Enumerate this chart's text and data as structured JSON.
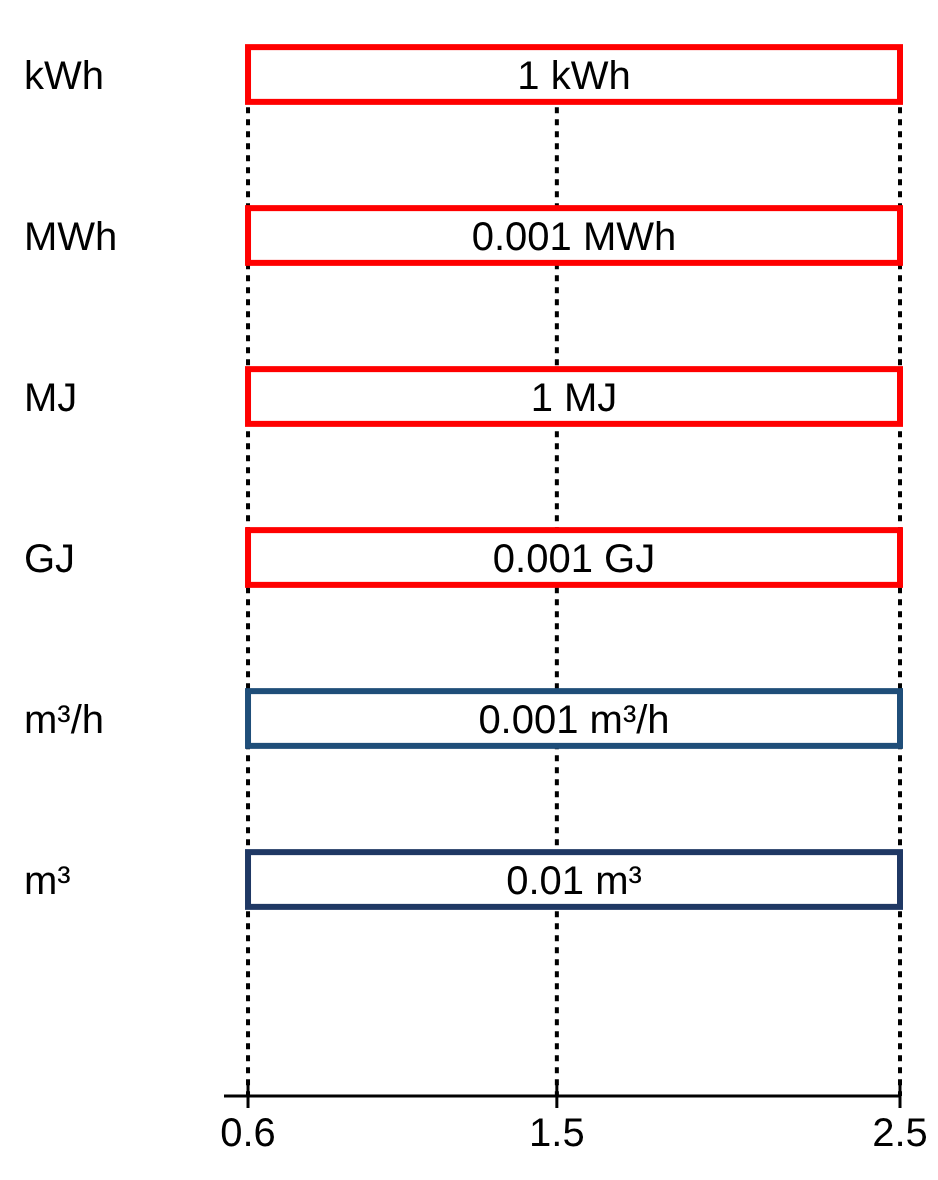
{
  "chart_data": {
    "type": "bar",
    "orientation": "horizontal",
    "categories": [
      "kWh",
      "MWh",
      "MJ",
      "GJ",
      "m³/h",
      "m³"
    ],
    "base": [
      0.6,
      0.6,
      0.6,
      0.6,
      0.6,
      0.6
    ],
    "values": [
      1.9,
      1.9,
      1.9,
      1.9,
      1.9,
      1.9
    ],
    "annotations": [
      "1 kWh",
      "0.001 MWh",
      "1 MJ",
      "0.001 GJ",
      "0.001 m³/h",
      "0.01 m³"
    ],
    "colors": [
      "#ff0000",
      "#ff0000",
      "#ff0000",
      "#ff0000",
      "#1f4e79",
      "#1f3864"
    ],
    "xlim": [
      0.53,
      2.5
    ],
    "xticks": [
      0.6,
      1.5,
      2.5
    ],
    "grid": "x"
  }
}
